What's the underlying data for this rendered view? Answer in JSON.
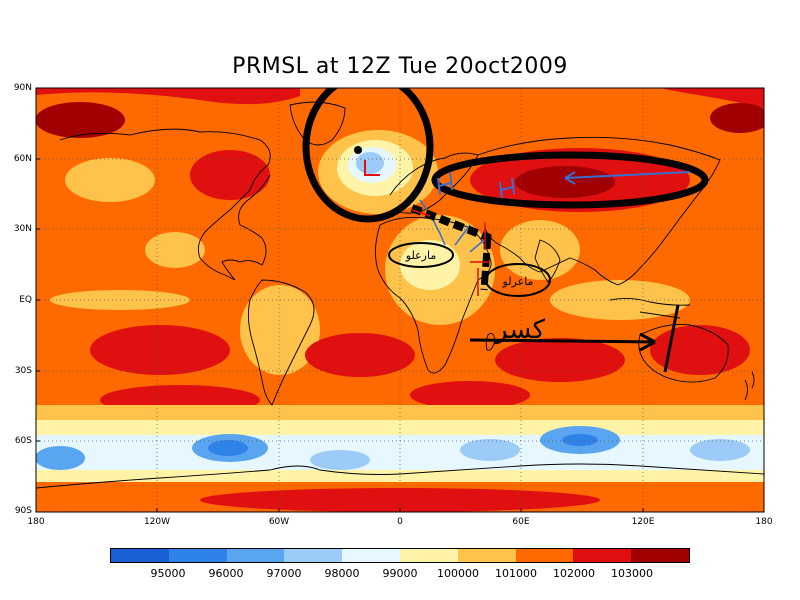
{
  "title": "PRMSL at 12Z Tue 20oct2009",
  "axes": {
    "lat_labels": [
      "90N",
      "60N",
      "30N",
      "EQ",
      "30S",
      "60S",
      "90S"
    ],
    "lon_labels": [
      "180",
      "120W",
      "60W",
      "0",
      "60E",
      "120E",
      "180"
    ]
  },
  "legend": {
    "colors": [
      "#1a5fd6",
      "#2f82e8",
      "#5aa5f0",
      "#9ccbf7",
      "#e6f7ff",
      "#fff3a8",
      "#ffc24a",
      "#ff6a00",
      "#e01010",
      "#a00000"
    ],
    "labels": [
      "95000",
      "96000",
      "97000",
      "98000",
      "99000",
      "100000",
      "101000",
      "102000",
      "103000"
    ]
  },
  "annotations": {
    "arabic_1": "مارعلو",
    "arabic_2": "ماعرلو",
    "arabic_3": "كسر"
  },
  "chart_data": {
    "type": "heatmap",
    "title": "PRMSL at 12Z Tue 20oct2009",
    "variable": "PRMSL",
    "xlim": [
      -180,
      180
    ],
    "ylim": [
      -90,
      90
    ],
    "levels": [
      95000,
      96000,
      97000,
      98000,
      99000,
      100000,
      101000,
      102000,
      103000
    ],
    "features": [
      {
        "type": "low",
        "lon": -15,
        "lat": 60
      },
      {
        "type": "high",
        "lon": 75,
        "lat": 52
      },
      {
        "type": "low_belt",
        "lat": -62
      }
    ]
  }
}
